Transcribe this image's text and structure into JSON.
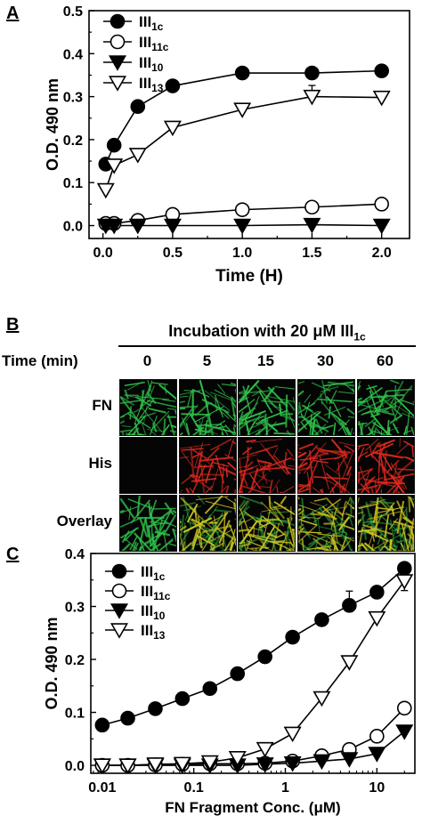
{
  "panels": {
    "a": "A",
    "b": "B",
    "c": "C"
  },
  "chart_data": [
    {
      "type": "line",
      "panel": "A",
      "xlabel": "Time (H)",
      "ylabel": "O.D. 490 nm",
      "xlim": [
        -0.1,
        2.2
      ],
      "ylim": [
        -0.03,
        0.5
      ],
      "xticks": [
        "0.0",
        "0.5",
        "1.0",
        "1.5",
        "2.0"
      ],
      "yticks": [
        "0.0",
        "0.1",
        "0.2",
        "0.3",
        "0.4",
        "0.5"
      ],
      "legend_position": "top-left",
      "series": [
        {
          "name": "III1c",
          "base": "III",
          "sub": "1c",
          "marker": "circle-filled",
          "x": [
            0.02,
            0.08,
            0.25,
            0.5,
            1.0,
            1.5,
            2.0
          ],
          "y": [
            0.143,
            0.187,
            0.277,
            0.325,
            0.355,
            0.355,
            0.36
          ]
        },
        {
          "name": "III11c",
          "base": "III",
          "sub": "11c",
          "marker": "circle-open",
          "x": [
            0.02,
            0.08,
            0.25,
            0.5,
            1.0,
            1.5,
            2.0
          ],
          "y": [
            0.005,
            0.005,
            0.012,
            0.026,
            0.037,
            0.043,
            0.05
          ]
        },
        {
          "name": "III10",
          "base": "III",
          "sub": "10",
          "marker": "triangle-down-filled",
          "x": [
            0.02,
            0.08,
            0.25,
            0.5,
            1.0,
            1.5,
            2.0
          ],
          "y": [
            0.0,
            0.0,
            0.0,
            0.0,
            0.0,
            0.002,
            0.0
          ]
        },
        {
          "name": "III13",
          "base": "III",
          "sub": "13",
          "marker": "triangle-down-open",
          "x": [
            0.02,
            0.08,
            0.25,
            0.5,
            1.0,
            1.5,
            2.0
          ],
          "y": [
            0.083,
            0.14,
            0.165,
            0.228,
            0.27,
            0.3,
            0.298
          ]
        }
      ]
    },
    {
      "type": "line",
      "panel": "C",
      "xscale": "log",
      "xlabel": "FN Fragment Conc. (μM)",
      "ylabel": "O.D. 490 nm",
      "xlim": [
        0.0075,
        26
      ],
      "ylim": [
        -0.015,
        0.4
      ],
      "xticks": [
        "0.01",
        "0.1",
        "1",
        "10"
      ],
      "yticks": [
        "0.0",
        "0.1",
        "0.2",
        "0.3",
        "0.4"
      ],
      "legend_position": "top-left",
      "series": [
        {
          "name": "III1c",
          "base": "III",
          "sub": "1c",
          "marker": "circle-filled",
          "x": [
            0.01,
            0.019,
            0.038,
            0.075,
            0.15,
            0.3,
            0.6,
            1.2,
            2.5,
            5,
            10,
            20
          ],
          "y": [
            0.076,
            0.089,
            0.107,
            0.126,
            0.145,
            0.173,
            0.205,
            0.242,
            0.275,
            0.302,
            0.327,
            0.372
          ]
        },
        {
          "name": "III11c",
          "base": "III",
          "sub": "11c",
          "marker": "circle-open",
          "x": [
            0.01,
            0.019,
            0.038,
            0.075,
            0.15,
            0.3,
            0.6,
            1.2,
            2.5,
            5,
            10,
            20
          ],
          "y": [
            0.0,
            0.0,
            0.001,
            0.002,
            0.003,
            0.003,
            0.004,
            0.008,
            0.018,
            0.03,
            0.055,
            0.108
          ]
        },
        {
          "name": "III10",
          "base": "III",
          "sub": "10",
          "marker": "triangle-down-filled",
          "x": [
            0.01,
            0.019,
            0.038,
            0.075,
            0.15,
            0.3,
            0.6,
            1.2,
            2.5,
            5,
            10,
            20
          ],
          "y": [
            0.0,
            0.0,
            0.0,
            0.0,
            0.0,
            0.0,
            0.002,
            0.004,
            0.008,
            0.012,
            0.022,
            0.064
          ]
        },
        {
          "name": "III13",
          "base": "III",
          "sub": "13",
          "marker": "triangle-down-open",
          "x": [
            0.01,
            0.019,
            0.038,
            0.075,
            0.15,
            0.3,
            0.6,
            1.2,
            2.5,
            5,
            10,
            20
          ],
          "y": [
            0.0,
            0.0,
            0.002,
            0.003,
            0.006,
            0.014,
            0.031,
            0.06,
            0.127,
            0.195,
            0.278,
            0.348
          ]
        }
      ]
    }
  ],
  "panel_b": {
    "header_prefix": "Incubation with 20 ",
    "header_unit": "μM III",
    "header_sub": "1c",
    "time_label": "Time (min)",
    "times": [
      "0",
      "5",
      "15",
      "30",
      "60"
    ],
    "rows": [
      {
        "label": "FN",
        "color": "#2fc24a",
        "intensity": [
          1,
          1,
          1,
          1,
          1
        ]
      },
      {
        "label": "His",
        "color": "#e0281e",
        "intensity": [
          0,
          0.7,
          0.8,
          0.85,
          0.95
        ]
      },
      {
        "label": "Overlay",
        "color": "#c9c222",
        "intensity": [
          0,
          0.75,
          0.85,
          0.9,
          0.95
        ]
      }
    ],
    "overlay_base_color": "#2fc24a"
  }
}
